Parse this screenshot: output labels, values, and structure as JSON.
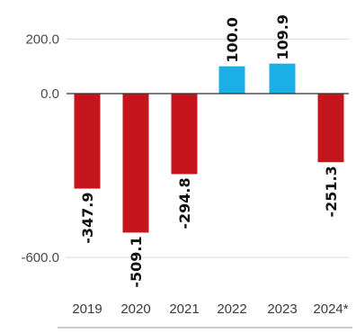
{
  "chart_data": {
    "type": "bar",
    "title": "",
    "xlabel": "",
    "ylabel": "",
    "categories": [
      "2019",
      "2020",
      "2021",
      "2022",
      "2023",
      "2024*"
    ],
    "values": [
      -347.9,
      -509.1,
      -294.8,
      100.0,
      109.9,
      -251.3
    ],
    "value_labels": [
      "-347.9",
      "-509.1",
      "-294.8",
      "100.0",
      "109.9",
      "-251.3"
    ],
    "yticks": [
      200,
      0,
      -600
    ],
    "ytick_labels": [
      "200.0",
      "0.0",
      "-600.0"
    ],
    "ylim": [
      -620,
      220
    ],
    "grid": true,
    "colors": {
      "positive": "#1ab0e6",
      "negative": "#c4141c",
      "grid": "#d9d9d9",
      "baseline": "#333333"
    }
  }
}
